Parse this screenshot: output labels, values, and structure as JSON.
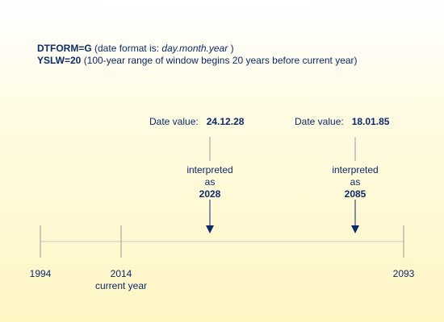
{
  "params": {
    "dtform_key": "DTFORM=G",
    "dtform_desc_prefix": "(date format is:",
    "dtform_format": "day.month.year",
    "dtform_desc_suffix": ")",
    "yslw_key": "YSLW=20",
    "yslw_desc": "(100-year range of window begins 20 years before current year)"
  },
  "examples": [
    {
      "label": "Date value:",
      "value": "24.12.28",
      "interp_line1": "interpreted",
      "interp_line2": "as",
      "result": "2028"
    },
    {
      "label": "Date value:",
      "value": "18.01.85",
      "interp_line1": "interpreted",
      "interp_line2": "as",
      "result": "2085"
    }
  ],
  "timeline": {
    "start_year": "1994",
    "current_year": "2014",
    "current_year_label": "current year",
    "end_year": "2093"
  },
  "colors": {
    "text": "#0b2a6b",
    "lines": "#9a9a9a",
    "arrow": "#0b2a6b"
  }
}
